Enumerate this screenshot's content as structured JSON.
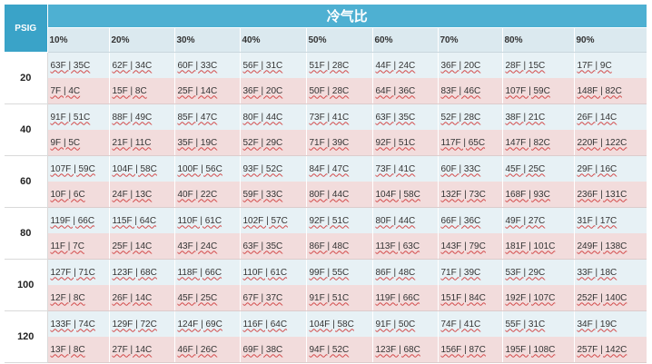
{
  "header": {
    "psig_label": "PSIG",
    "title": "冷气比",
    "percentages": [
      "10%",
      "20%",
      "30%",
      "40%",
      "50%",
      "60%",
      "70%",
      "80%",
      "90%"
    ]
  },
  "rows": [
    {
      "psig": "20",
      "top": [
        "63F | 35C",
        "62F | 34C",
        "60F | 33C",
        "56F | 31C",
        "51F | 28C",
        "44F | 24C",
        "36F | 20C",
        "28F | 15C",
        "17F | 9C"
      ],
      "bottom": [
        "7F | 4C",
        "15F | 8C",
        "25F | 14C",
        "36F | 20C",
        "50F | 28C",
        "64F | 36C",
        "83F | 46C",
        "107F | 59C",
        "148F | 82C"
      ]
    },
    {
      "psig": "40",
      "top": [
        "91F | 51C",
        "88F | 49C",
        "85F | 47C",
        "80F | 44C",
        "73F | 41C",
        "63F | 35C",
        "52F | 28C",
        "38F | 21C",
        "26F | 14C"
      ],
      "bottom": [
        "9F | 5C",
        "21F | 11C",
        "35F | 19C",
        "52F | 29C",
        "71F | 39C",
        "92F | 51C",
        "117F | 65C",
        "147F | 82C",
        "220F | 122C"
      ]
    },
    {
      "psig": "60",
      "top": [
        "107F | 59C",
        "104F | 58C",
        "100F | 56C",
        "93F | 52C",
        "84F | 47C",
        "73F | 41C",
        "60F | 33C",
        "45F | 25C",
        "29F | 16C"
      ],
      "bottom": [
        "10F | 6C",
        "24F | 13C",
        "40F | 22C",
        "59F | 33C",
        "80F | 44C",
        "104F | 58C",
        "132F | 73C",
        "168F | 93C",
        "236F | 131C"
      ]
    },
    {
      "psig": "80",
      "top": [
        "119F | 66C",
        "115F | 64C",
        "110F | 61C",
        "102F | 57C",
        "92F | 51C",
        "80F | 44C",
        "66F | 36C",
        "49F | 27C",
        "31F | 17C"
      ],
      "bottom": [
        "11F | 7C",
        "25F | 14C",
        "43F | 24C",
        "63F | 35C",
        "86F | 48C",
        "113F | 63C",
        "143F | 79C",
        "181F | 101C",
        "249F | 138C"
      ]
    },
    {
      "psig": "100",
      "top": [
        "127F | 71C",
        "123F | 68C",
        "118F | 66C",
        "110F | 61C",
        "99F | 55C",
        "86F | 48C",
        "71F | 39C",
        "53F | 29C",
        "33F | 18C"
      ],
      "bottom": [
        "12F | 8C",
        "26F | 14C",
        "45F | 25C",
        "67F | 37C",
        "91F | 51C",
        "119F | 66C",
        "151F | 84C",
        "192F | 107C",
        "252F | 140C"
      ]
    },
    {
      "psig": "120",
      "top": [
        "133F | 74C",
        "129F | 72C",
        "124F | 69C",
        "116F | 64C",
        "104F | 58C",
        "91F | 50C",
        "74F | 41C",
        "55F | 31C",
        "34F | 19C"
      ],
      "bottom": [
        "13F | 8C",
        "27F | 14C",
        "46F | 26C",
        "69F | 38C",
        "94F | 52C",
        "123F | 68C",
        "156F | 87C",
        "195F | 108C",
        "257F | 142C"
      ]
    }
  ]
}
